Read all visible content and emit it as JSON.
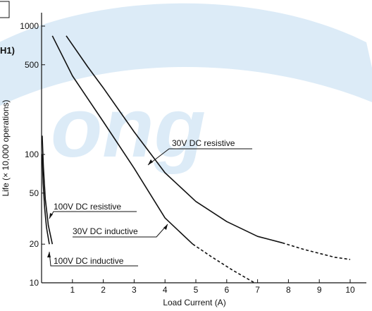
{
  "chart_data": {
    "type": "line",
    "xlabel": "Load Current (A)",
    "ylabel": "Life (× 10,000 operations)",
    "x_ticks": [
      "1",
      "2",
      "3",
      "4",
      "5",
      "6",
      "7",
      "8",
      "9",
      "10"
    ],
    "y_ticks": [
      {
        "value": 10,
        "label": "10"
      },
      {
        "value": 20,
        "label": "20"
      },
      {
        "value": 50,
        "label": "50"
      },
      {
        "value": 100,
        "label": "100"
      },
      {
        "value": 500,
        "label": "500"
      },
      {
        "value": 1000,
        "label": "1000"
      }
    ],
    "xlim": [
      0,
      10.4
    ],
    "ylim": [
      10,
      1250
    ],
    "y_scale": "log",
    "grid": false,
    "series": [
      {
        "name": "30V DC resistive",
        "solid": [
          [
            0.8,
            840
          ],
          [
            1.5,
            480
          ],
          [
            2,
            330
          ],
          [
            3,
            150
          ],
          [
            4,
            72
          ],
          [
            5,
            43
          ],
          [
            6,
            30
          ],
          [
            7,
            23
          ],
          [
            7.8,
            20.5
          ]
        ],
        "dashed": [
          [
            7.8,
            20.5
          ],
          [
            8.5,
            18.2
          ],
          [
            9.5,
            15.8
          ],
          [
            10,
            15.2
          ]
        ]
      },
      {
        "name": "30V DC inductive",
        "solid": [
          [
            0.35,
            840
          ],
          [
            1,
            410
          ],
          [
            2,
            180
          ],
          [
            3,
            78
          ],
          [
            4,
            32
          ],
          [
            4.9,
            20
          ]
        ],
        "dashed": [
          [
            4.9,
            20
          ],
          [
            5.5,
            16
          ],
          [
            6.2,
            12.5
          ],
          [
            6.9,
            10
          ]
        ]
      },
      {
        "name": "100V DC resistive",
        "solid": [
          [
            0.02,
            140
          ],
          [
            0.06,
            80
          ],
          [
            0.12,
            45
          ],
          [
            0.22,
            28
          ],
          [
            0.35,
            20
          ]
        ]
      },
      {
        "name": "100V DC inductive",
        "solid": [
          [
            0.02,
            100
          ],
          [
            0.05,
            60
          ],
          [
            0.1,
            38
          ],
          [
            0.16,
            27
          ],
          [
            0.25,
            20
          ]
        ]
      }
    ],
    "annotations": [
      {
        "text": "30V DC resistive",
        "series": "30V DC resistive"
      },
      {
        "text": "30V DC inductive",
        "series": "30V DC inductive"
      },
      {
        "text": "100V DC resistive",
        "series": "100V DC resistive"
      },
      {
        "text": "100V DC inductive",
        "series": "100V DC inductive"
      }
    ],
    "header_fragment": "H1)"
  }
}
